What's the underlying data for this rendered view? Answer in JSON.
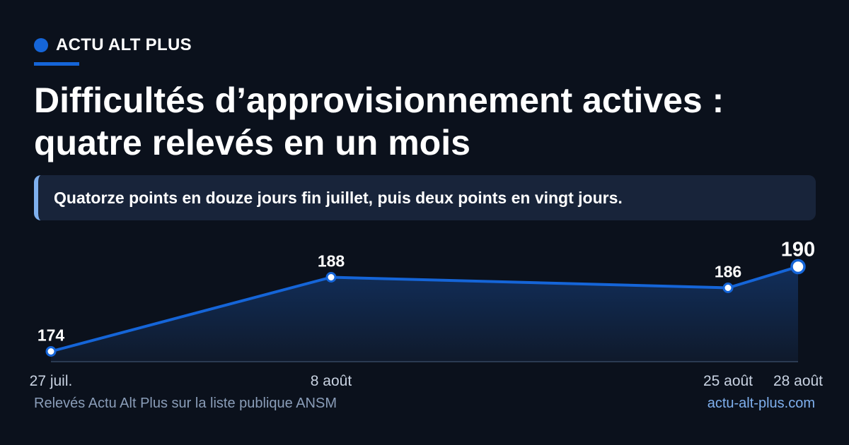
{
  "brand": {
    "name": "ACTU ALT PLUS"
  },
  "title_lines": [
    "Difficultés d’approvisionnement actives :",
    "quatre relevés en un mois"
  ],
  "subtitle": "Quatorze points en douze jours fin juillet, puis deux points en vingt jours.",
  "footer": {
    "source": "Relevés Actu Alt Plus sur la liste publique ANSM",
    "site": "actu-alt-plus.com"
  },
  "colors": {
    "background": "#0b111c",
    "accent": "#1565d8",
    "accent_light": "#7fb0ee",
    "panel": "#18243a"
  },
  "chart_data": {
    "type": "area",
    "title": "",
    "xlabel": "",
    "ylabel": "",
    "categories": [
      "27 juil.",
      "8 août",
      "25 août",
      "28 août"
    ],
    "x": [
      "2024-07-27",
      "2024-08-08",
      "2024-08-25",
      "2024-08-28"
    ],
    "values": [
      174,
      188,
      186,
      190
    ],
    "data_labels": [
      "174",
      "188",
      "186",
      "190"
    ],
    "highlight_last": true,
    "grid": false
  }
}
